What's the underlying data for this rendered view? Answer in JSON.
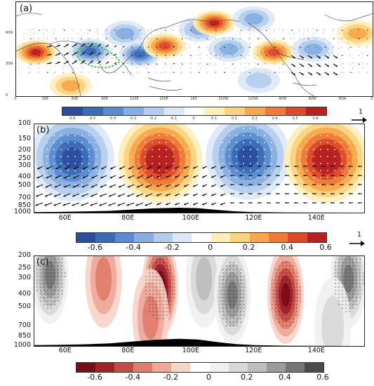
{
  "chart_data": [
    {
      "type": "heatmap",
      "panel_label": "(a)",
      "x_ticks": [
        "0",
        "30E",
        "60E",
        "90E",
        "120E",
        "150E",
        "180",
        "150W",
        "120W",
        "90W",
        "60W",
        "30W",
        "0"
      ],
      "y_ticks": [
        "60N",
        "30N",
        "0"
      ],
      "colorbar_ticks": [
        "-0.6",
        "-0.5",
        "-0.4",
        "-0.3",
        "-0.2",
        "-0.1",
        "0",
        "0.1",
        "0.2",
        "0.3",
        "0.4",
        "0.5",
        "0.6"
      ],
      "colorbar_colors": [
        "#2b4d9c",
        "#3c6ab5",
        "#5a8bd0",
        "#86aee0",
        "#b2cdec",
        "#dbe8f6",
        "#ffffff",
        "#fdefb8",
        "#fcd27e",
        "#f7a64b",
        "#ef7a35",
        "#dc4a2a",
        "#b5211f"
      ],
      "reference_vector": "1",
      "anomalies": [
        {
          "lon": 20,
          "lat": 42,
          "value": 0.6
        },
        {
          "lon": 75,
          "lat": 43,
          "value": -0.45
        },
        {
          "lon": 110,
          "lat": 60,
          "value": -0.35
        },
        {
          "lon": 125,
          "lat": 40,
          "value": -0.5
        },
        {
          "lon": 150,
          "lat": 48,
          "value": 0.5
        },
        {
          "lon": 185,
          "lat": 64,
          "value": -0.3
        },
        {
          "lon": 200,
          "lat": 70,
          "value": 0.55
        },
        {
          "lon": 215,
          "lat": 45,
          "value": -0.3
        },
        {
          "lon": 260,
          "lat": 42,
          "value": 0.5
        },
        {
          "lon": 245,
          "lat": 15,
          "value": -0.2
        },
        {
          "lon": 300,
          "lat": 45,
          "value": -0.3
        },
        {
          "lon": 345,
          "lat": 60,
          "value": 0.3
        },
        {
          "lon": 55,
          "lat": 10,
          "value": 0.3
        },
        {
          "lon": 240,
          "lat": 74,
          "value": -0.3
        }
      ]
    },
    {
      "type": "heatmap",
      "panel_label": "(b)",
      "x_ticks": [
        "60E",
        "80E",
        "100E",
        "120E",
        "140E"
      ],
      "y_ticks": [
        "100",
        "150",
        "200",
        "250",
        "300",
        "400",
        "500",
        "700",
        "850",
        "1000"
      ],
      "xlim": [
        50,
        155
      ],
      "ylim": [
        1000,
        100
      ],
      "colorbar_ticks": [
        "-0.6",
        "-0.4",
        "-0.2",
        "0",
        "0.2",
        "0.4",
        "0.6"
      ],
      "colorbar_colors": [
        "#2b4d9c",
        "#3c6ab5",
        "#5a8bd0",
        "#86aee0",
        "#b2cdec",
        "#dbe8f6",
        "#ffffff",
        "#fdefb8",
        "#fcd27e",
        "#f7a64b",
        "#ef7a35",
        "#dc4a2a",
        "#b5211f"
      ],
      "reference_vector": "1",
      "anomalies": [
        {
          "lon": 62,
          "p": 240,
          "value": -0.6
        },
        {
          "lon": 90,
          "p": 250,
          "value": 0.65
        },
        {
          "lon": 118,
          "p": 230,
          "value": -0.55
        },
        {
          "lon": 143,
          "p": 250,
          "value": 0.7
        }
      ]
    },
    {
      "type": "heatmap",
      "panel_label": "(c)",
      "x_ticks": [
        "60E",
        "80E",
        "100E",
        "120E",
        "140E"
      ],
      "y_ticks": [
        "200",
        "250",
        "300",
        "400",
        "500",
        "700",
        "850",
        "1000"
      ],
      "xlim": [
        50,
        155
      ],
      "ylim": [
        1000,
        200
      ],
      "colorbar_ticks": [
        "-0.6",
        "-0.4",
        "-0.2",
        "0",
        "0.2",
        "0.4",
        "0.6"
      ],
      "colorbar_colors": [
        "#7a0c16",
        "#a32029",
        "#c64a46",
        "#df7d6d",
        "#eea797",
        "#f7d4c8",
        "#ffffff",
        "#f0f0f0",
        "#d8d8d8",
        "#bdbdbd",
        "#9a9a9a",
        "#767676",
        "#4a4a4a"
      ],
      "anomalies": [
        {
          "lon": 55,
          "p": 280,
          "value": 0.5
        },
        {
          "lon": 72,
          "p": 300,
          "value": -0.35
        },
        {
          "lon": 90,
          "p": 350,
          "value": -0.65
        },
        {
          "lon": 87,
          "p": 600,
          "value": -0.3
        },
        {
          "lon": 104,
          "p": 300,
          "value": 0.35
        },
        {
          "lon": 113,
          "p": 400,
          "value": 0.45
        },
        {
          "lon": 130,
          "p": 400,
          "value": -0.55
        },
        {
          "lon": 150,
          "p": 300,
          "value": 0.45
        },
        {
          "lon": 145,
          "p": 700,
          "value": 0.2
        }
      ]
    }
  ]
}
